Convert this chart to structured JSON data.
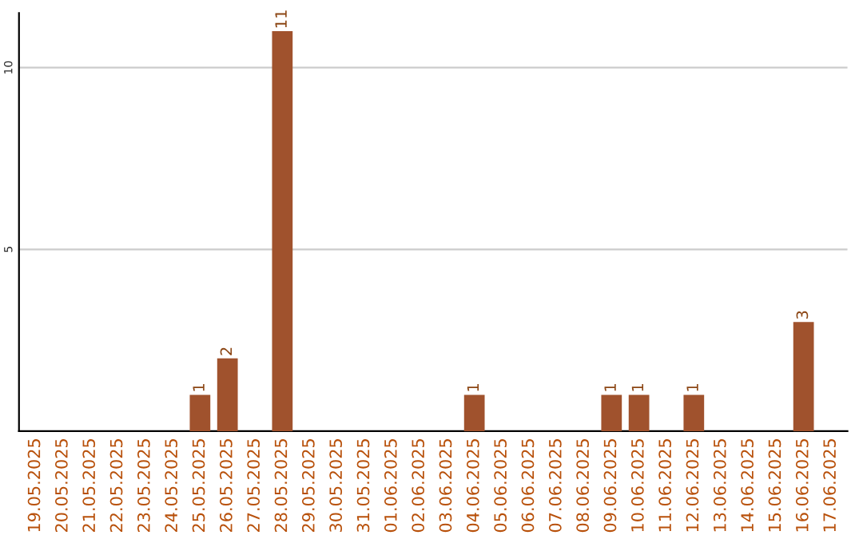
{
  "chart_data": {
    "type": "bar",
    "categories": [
      "19.05.2025",
      "20.05.2025",
      "21.05.2025",
      "22.05.2025",
      "23.05.2025",
      "24.05.2025",
      "25.05.2025",
      "26.05.2025",
      "27.05.2025",
      "28.05.2025",
      "29.05.2025",
      "30.05.2025",
      "31.05.2025",
      "01.06.2025",
      "02.06.2025",
      "03.06.2025",
      "04.06.2025",
      "05.06.2025",
      "06.06.2025",
      "07.06.2025",
      "08.06.2025",
      "09.06.2025",
      "10.06.2025",
      "11.06.2025",
      "12.06.2025",
      "13.06.2025",
      "14.06.2025",
      "15.06.2025",
      "16.06.2025",
      "17.06.2025"
    ],
    "values": [
      0,
      0,
      0,
      0,
      0,
      0,
      1,
      2,
      0,
      11,
      0,
      0,
      0,
      0,
      0,
      0,
      1,
      0,
      0,
      0,
      0,
      1,
      1,
      0,
      1,
      0,
      0,
      0,
      3,
      0
    ],
    "value_labels": [
      null,
      null,
      null,
      null,
      null,
      null,
      "1",
      "2",
      null,
      "11",
      null,
      null,
      null,
      null,
      null,
      null,
      "1",
      null,
      null,
      null,
      null,
      "1",
      "1",
      null,
      "1",
      null,
      null,
      null,
      "3",
      null
    ],
    "color": "#a0522d",
    "ylim": [
      0,
      11.5
    ],
    "yticks": [
      5,
      10
    ],
    "grid": "y"
  }
}
